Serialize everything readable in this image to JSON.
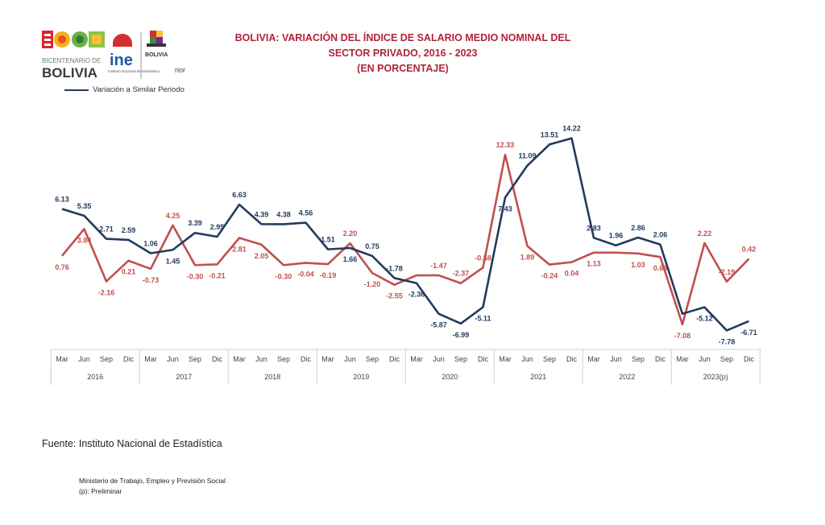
{
  "header": {
    "title_lines": [
      "BOLIVIA: VARIACIÓN DEL ÍNDICE DE SALARIO MEDIO NOMINAL DEL",
      "SECTOR PRIVADO, 2016 - 2023",
      "(EN PORCENTAJE)"
    ],
    "truncated_legend_text": "rior",
    "logos": {
      "bicentenario_text_top": "BICENTENARIO DE",
      "bicentenario_text_bottom": "BOLIVIA",
      "ine_text": "ine",
      "ine_caption": "Instituto Nacional de Estadística",
      "ministry_logo_text": "BOLIVIA"
    }
  },
  "legend": {
    "visible_label": "Variación a Similar Periodo"
  },
  "chart_data": {
    "type": "line",
    "categories": [
      "Mar",
      "Jun",
      "Sep",
      "Dic",
      "Mar",
      "Jun",
      "Sep",
      "Dic",
      "Mar",
      "Jun",
      "Sep",
      "Dic",
      "Mar",
      "Jun",
      "Sep",
      "Dic",
      "Mar",
      "Jun",
      "Sep",
      "Dic",
      "Mar",
      "Jun",
      "Sep",
      "Dic",
      "Mar",
      "Jun",
      "Sep",
      "Dic",
      "Mar",
      "Jun",
      "Sep",
      "Dic"
    ],
    "year_groups": [
      "2016",
      "2017",
      "2018",
      "2019",
      "2020",
      "2021",
      "2022",
      "2023(p)"
    ],
    "series": [
      {
        "name": "Variación a Similar Periodo",
        "color": "#233a5e",
        "values": [
          6.13,
          5.35,
          2.71,
          2.59,
          1.06,
          1.45,
          3.39,
          2.95,
          6.63,
          4.39,
          4.38,
          4.56,
          1.51,
          1.66,
          0.75,
          -1.78,
          -2.36,
          -5.87,
          -6.99,
          -5.11,
          7.43,
          11.09,
          13.51,
          14.22,
          2.83,
          1.96,
          2.86,
          2.06,
          -5.87,
          -5.12,
          -7.78,
          -6.71
        ],
        "labels": [
          "6.13",
          "5.35",
          "2.71",
          "2.59",
          "1.06",
          "1.45",
          "3.39",
          "2.95",
          "6.63",
          "4.39",
          "4.38",
          "4.56",
          "1.51",
          "1.66",
          "0.75",
          "-1.78",
          "-2.36",
          "-5.87",
          "-6.99",
          "-5.11",
          "7.43",
          "11.09",
          "13.51",
          "14.22",
          "2.83",
          "1.96",
          "2.86",
          "2.06",
          "",
          "-5.12",
          "-7.78",
          "-6.71"
        ]
      },
      {
        "color": "#c0504d",
        "values": [
          0.76,
          3.84,
          -2.16,
          0.21,
          -0.73,
          4.25,
          -0.3,
          -0.21,
          2.81,
          2.05,
          -0.3,
          -0.04,
          -0.19,
          2.2,
          -1.2,
          -2.55,
          -1.47,
          -1.47,
          -2.37,
          -0.58,
          12.33,
          1.89,
          -0.24,
          0.04,
          1.13,
          1.13,
          1.03,
          0.63,
          -7.08,
          2.22,
          -2.19,
          0.42
        ],
        "labels": [
          "0.76",
          "3.84",
          "-2.16",
          "0.21",
          "-0.73",
          "4.25",
          "-0.30",
          "-0.21",
          "2.81",
          "2.05",
          "-0.30",
          "-0.04",
          "-0.19",
          "2.20",
          "-1.20",
          "-2.55",
          "",
          "-1.47",
          "-2.37",
          "-0.58",
          "12.33",
          "1.89",
          "-0.24",
          "0.04",
          "1.13",
          "",
          "1.03",
          "0.63",
          "-7.08",
          "2.22",
          "-2.19",
          "0.42"
        ]
      }
    ],
    "ylim": [
      -9,
      16
    ],
    "grid": false,
    "legend_position": "top-left"
  },
  "footer": {
    "source": "Fuente: Instituto Nacional de Estadística",
    "notes": [
      "Ministerio de Trabajo, Empleo y Previsión Social",
      "(p): Preliminar"
    ]
  }
}
